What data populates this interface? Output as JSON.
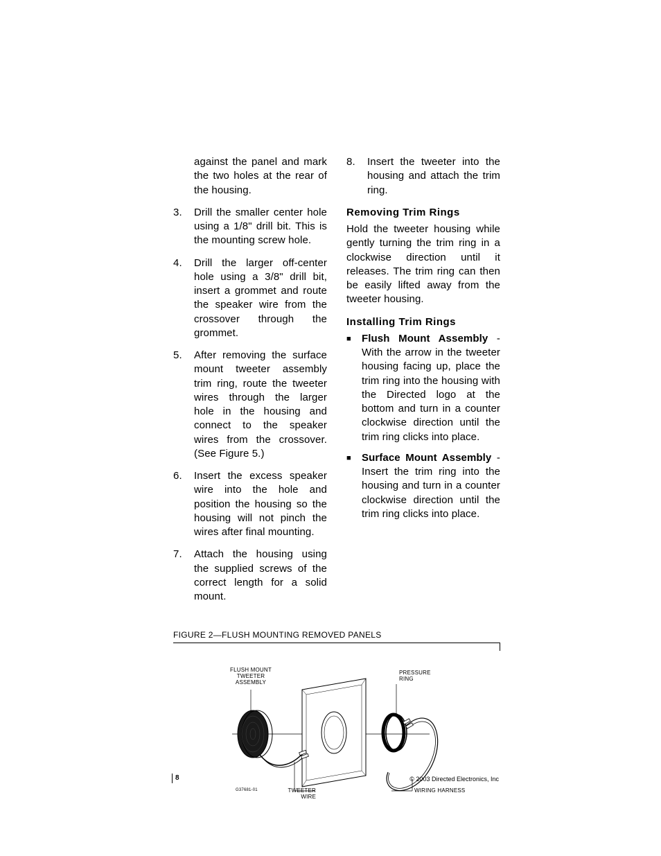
{
  "colors": {
    "text": "#000000",
    "background": "#ffffff",
    "rule": "#000000"
  },
  "typography": {
    "body_fontsize": 15,
    "body_lineheight": 1.35,
    "heading_fontsize": 15,
    "heading_weight": 700,
    "caption_fontsize": 12,
    "figure_label_fontsize": 8,
    "footer_page_fontsize": 10,
    "footer_copy_fontsize": 9
  },
  "left_column": {
    "continuation": "against the panel and mark the two holes at the rear of the housing.",
    "items": [
      {
        "num": "3.",
        "text": "Drill the smaller center hole using a 1/8\" drill bit. This is the mounting screw hole."
      },
      {
        "num": "4.",
        "text": "Drill the larger off-center hole using a 3/8\" drill bit, insert a grommet and route the speaker wire from the crossover through the grommet."
      },
      {
        "num": "5.",
        "text": "After removing the surface mount tweeter assembly trim ring, route the tweeter wires through the larger hole in the housing and connect to the speaker wires from the crossover. (See Figure 5.)"
      },
      {
        "num": "6.",
        "text": "Insert the excess speaker wire into the hole and position the housing so the housing will not pinch the wires after final mounting."
      },
      {
        "num": "7.",
        "text": "Attach the housing using the supplied screws of the correct length for a solid mount."
      }
    ]
  },
  "right_column": {
    "top_item": {
      "num": "8.",
      "text": "Insert the tweeter into the housing and attach the trim ring."
    },
    "section1": {
      "heading": "Removing Trim Rings",
      "body": "Hold the tweeter housing while gently turning the trim ring in a clockwise direction until it releases. The trim ring can then be easily lifted away from the tweeter housing."
    },
    "section2": {
      "heading": "Installing Trim Rings",
      "bullets": [
        {
          "lead": "Flush Mount Assembly",
          "rest": " - With the arrow in the tweeter housing facing up, place the trim ring into the housing with the Directed logo at the bottom and turn in a counter clockwise direction until the trim ring clicks into place."
        },
        {
          "lead": "Surface Mount Assembly",
          "rest": " - Insert the trim ring into the housing and turn in a counter clockwise direction until the trim ring clicks into place."
        }
      ]
    }
  },
  "figure": {
    "caption": "FIGURE 2—FLUSH MOUNTING REMOVED PANELS",
    "labels": {
      "flush_mount": "FLUSH MOUNT\nTWEETER\nASSEMBLY",
      "pressure_ring": "PRESSURE\nRING",
      "tweeter_wire": "TWEETER WIRE",
      "wiring_harness": "WIRING HARNESS",
      "code": "G37681-01"
    },
    "colors": {
      "stroke": "#000000",
      "fill_dark": "#1a1a1a",
      "fill_white": "#ffffff"
    }
  },
  "footer": {
    "page": "8",
    "copyright": "© 2003 Directed Electronics, Inc"
  }
}
